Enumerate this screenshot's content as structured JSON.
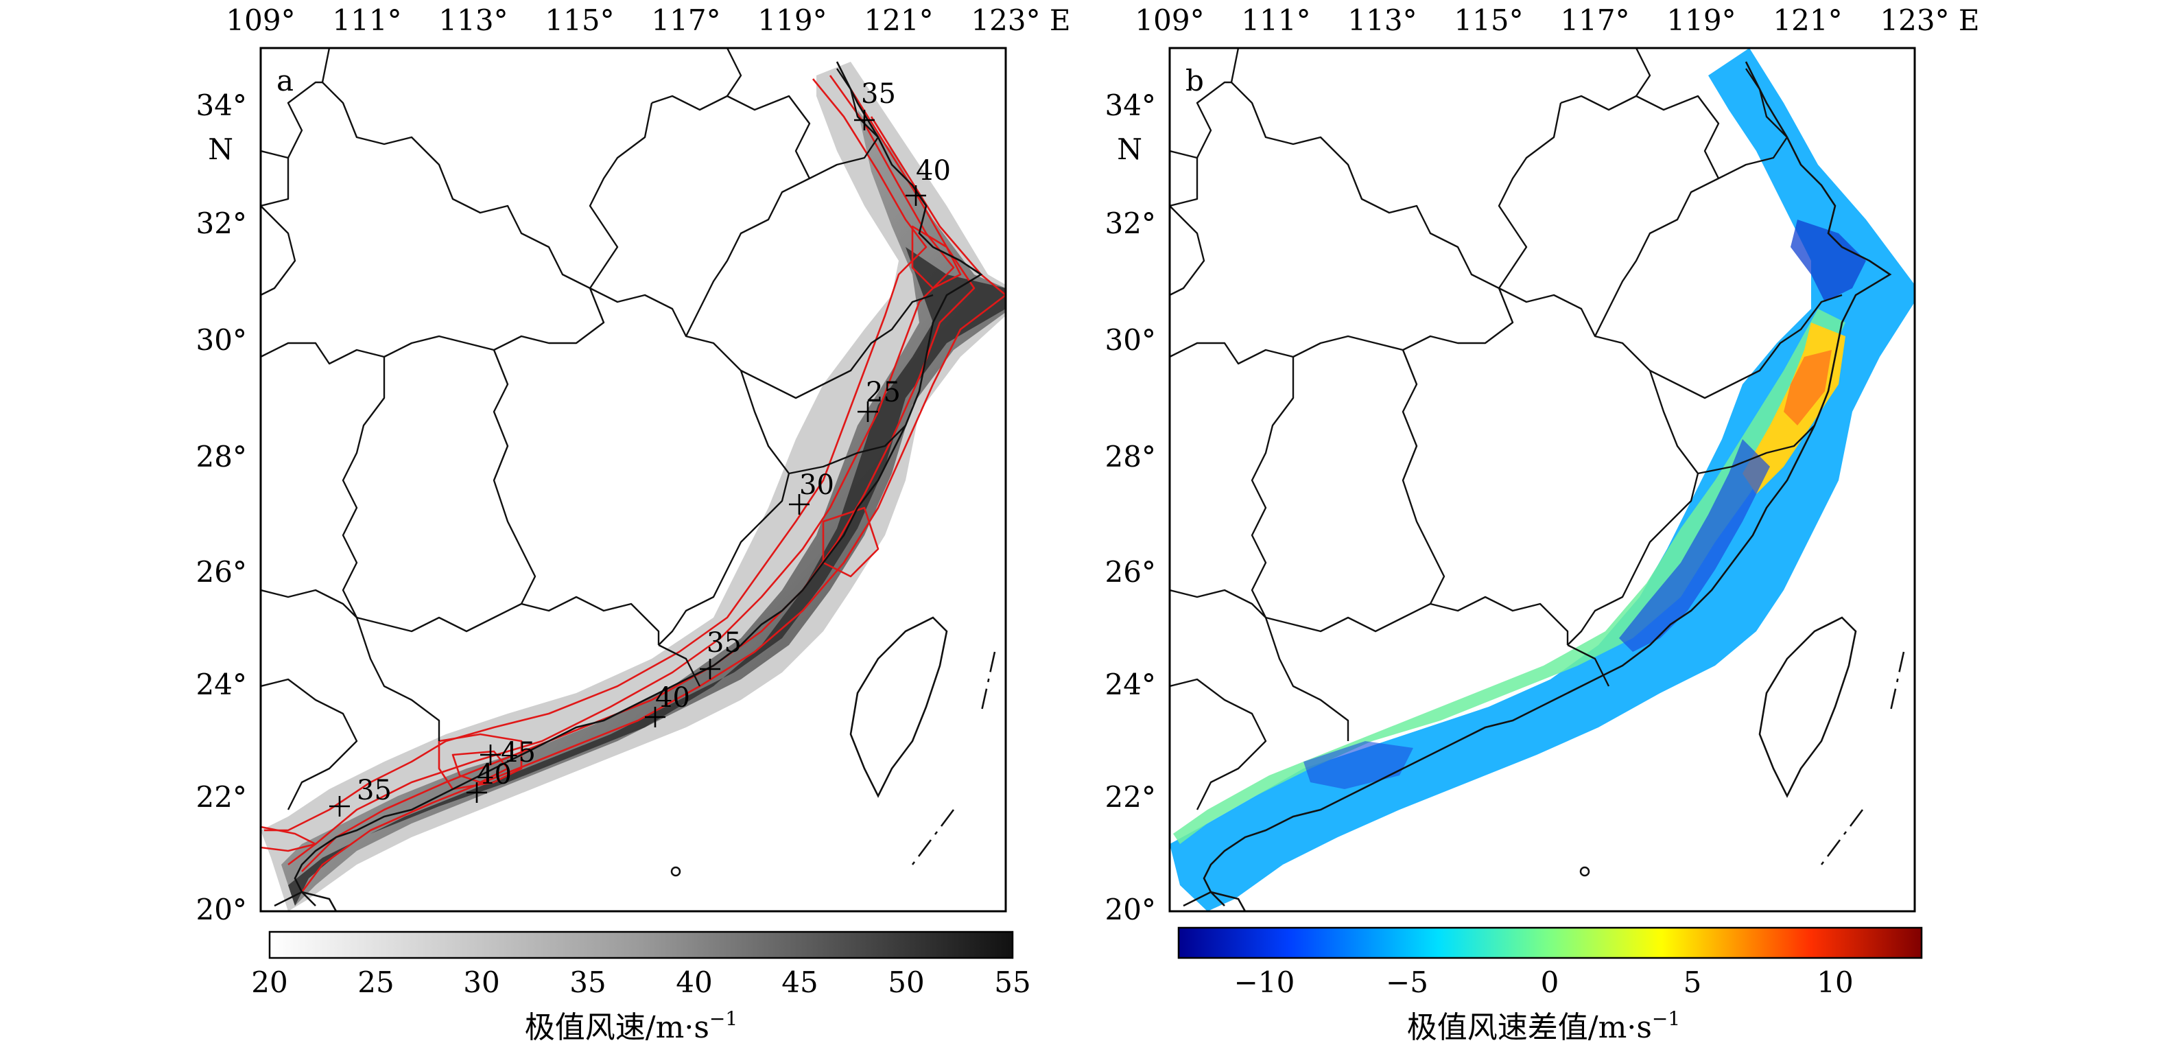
{
  "panels": [
    {
      "letter": "a",
      "lon_labels": [
        "109°",
        "111°",
        "113°",
        "115°",
        "117°",
        "119°",
        "121°",
        "123° E"
      ],
      "lat_labels": [
        "34°",
        "32°",
        "30°",
        "28°",
        "26°",
        "24°",
        "22°",
        "20°"
      ],
      "north_label": "N",
      "contour_labels": [
        "35",
        "40",
        "25",
        "30",
        "35",
        "40",
        "35",
        "45",
        "35",
        "40"
      ],
      "colorbar": {
        "ticks": [
          "20",
          "25",
          "30",
          "35",
          "40",
          "45",
          "50",
          "55"
        ],
        "label": "极值风速/m·s",
        "unit_exponent": "−1",
        "colors": [
          "#ffffff",
          "#1a1a1a"
        ]
      }
    },
    {
      "letter": "b",
      "lon_labels": [
        "109°",
        "111°",
        "113°",
        "115°",
        "117°",
        "119°",
        "121°",
        "123° E"
      ],
      "lat_labels": [
        "34°",
        "32°",
        "30°",
        "28°",
        "26°",
        "24°",
        "22°",
        "20°"
      ],
      "north_label": "N",
      "colorbar": {
        "ticks": [
          "−10",
          "−5",
          "0",
          "5",
          "10"
        ],
        "label": "极值风速差值/m·s",
        "unit_exponent": "−1",
        "colors": [
          "#00008f",
          "#0060ff",
          "#00e0ff",
          "#80ff80",
          "#ffff00",
          "#ff6000",
          "#800000"
        ]
      }
    }
  ]
}
